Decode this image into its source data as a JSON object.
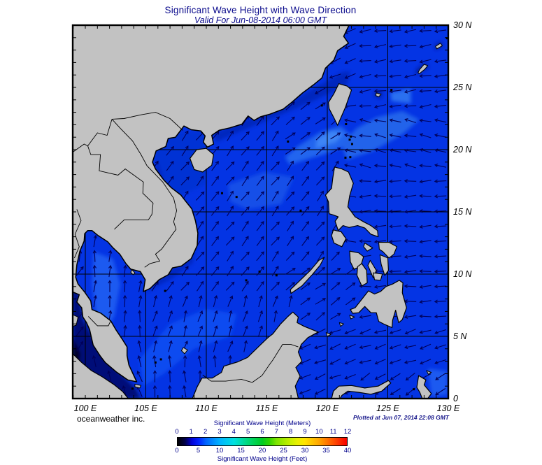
{
  "title": "Significant Wave Height with Wave Direction",
  "subtitle": "Valid For Jun-08-2014 06:00 GMT",
  "branding": "oceanweather inc.",
  "plotted_at": "Plotted at Jun 07, 2014 22:08 GMT",
  "axes": {
    "x_tick_labels": [
      "100 E",
      "105 E",
      "110 E",
      "115 E",
      "120 E",
      "125 E",
      "130 E"
    ],
    "x_tick_lons": [
      100,
      105,
      110,
      115,
      120,
      125,
      130
    ],
    "y_tick_labels": [
      "30 N",
      "25 N",
      "20 N",
      "15 N",
      "10 N",
      "5 N",
      "0"
    ],
    "y_tick_lats": [
      30,
      25,
      20,
      15,
      10,
      5,
      0
    ],
    "lon_min": 98.96,
    "lon_max": 130,
    "lat_min": 0,
    "lat_max": 30
  },
  "legend": {
    "meters_label": "Significant Wave Height (Meters)",
    "feet_label": "Significant Wave Height (Feet)",
    "meters_ticks": [
      "0",
      "1",
      "2",
      "3",
      "4",
      "5",
      "6",
      "7",
      "8",
      "9",
      "10",
      "11",
      "12"
    ],
    "feet_ticks": [
      "0",
      "5",
      "10",
      "15",
      "20",
      "25",
      "30",
      "35",
      "40"
    ],
    "gradient": [
      [
        0,
        "#000000"
      ],
      [
        0.045,
        "#00004a"
      ],
      [
        0.083,
        "#0000d6"
      ],
      [
        0.125,
        "#0022ff"
      ],
      [
        0.167,
        "#0064ff"
      ],
      [
        0.25,
        "#00b4ff"
      ],
      [
        0.333,
        "#00e0e0"
      ],
      [
        0.417,
        "#00d878"
      ],
      [
        0.5,
        "#00cc24"
      ],
      [
        0.542,
        "#30d400"
      ],
      [
        0.583,
        "#7ce400"
      ],
      [
        0.667,
        "#c8f000"
      ],
      [
        0.708,
        "#e8f000"
      ],
      [
        0.75,
        "#ffe400"
      ],
      [
        0.833,
        "#ffa800"
      ],
      [
        0.917,
        "#ff5400"
      ],
      [
        1,
        "#f80000"
      ]
    ]
  },
  "colors": {
    "ocean_base": "#0434e4",
    "land": "#c2c2c2",
    "coastline": "#000000",
    "grid": "#000000",
    "arrow": "#000058",
    "title_text": "#0a0a8c",
    "axis_text": "#000000",
    "legend_text": "#00008b",
    "plotted_text": "#1a1a8c"
  },
  "field_summary": {
    "quantity": "significant wave height with wave direction arrows",
    "typical_heights_m": {
      "south_china_sea": "1-2",
      "luzon_strait_philippine_sea": "1.5-2.5",
      "gulf_of_thailand": "1-1.5",
      "strait_of_malacca_andaman_coast": "0-0.5",
      "pacific_east_of_philippines": "1-2"
    },
    "wave_directions": {
      "central_south_china_sea": "toward NE",
      "east_china_sea_taiwan_strait_north": "toward WSW",
      "philippine_sea_east_of_luzon": "toward W",
      "gulf_of_thailand_south_scs": "toward N",
      "celebes_molucca_seas": "toward WSW"
    }
  }
}
